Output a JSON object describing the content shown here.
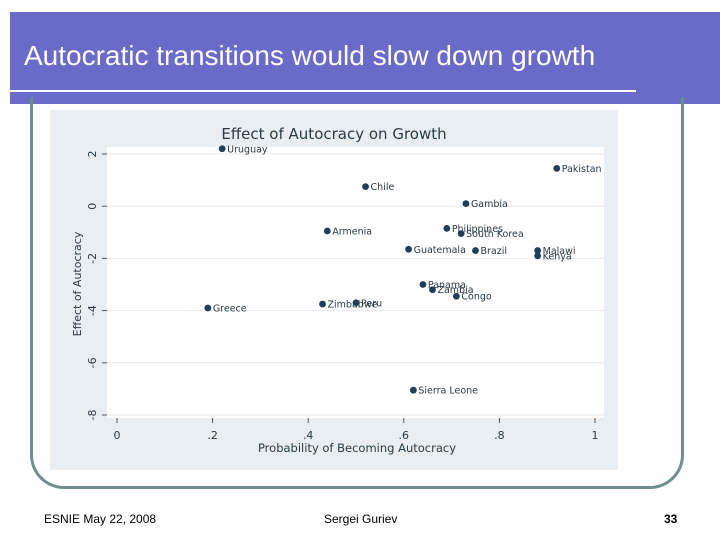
{
  "slide": {
    "title": "Autocratic transitions would slow down growth",
    "footer_left": "ESNIE May 22, 2008",
    "footer_center": "Sergei Guriev",
    "page_number": "33",
    "accent_color": "#6a6ac9"
  },
  "chart_data": {
    "type": "scatter",
    "title": "Effect of Autocracy on Growth",
    "xlabel": "Probability of Becoming Autocracy",
    "ylabel": "Effect of Autocracy",
    "xlim": [
      0,
      1
    ],
    "ylim": [
      -8,
      2
    ],
    "xticks": [
      0,
      0.2,
      0.4,
      0.6,
      0.8,
      1
    ],
    "xtick_labels": [
      "0",
      ".2",
      ".4",
      ".6",
      ".8",
      "1"
    ],
    "yticks": [
      -8,
      -6,
      -4,
      -2,
      0,
      2
    ],
    "ytick_labels": [
      "-8",
      "-6",
      "-4",
      "-2",
      "0",
      "2"
    ],
    "grid": true,
    "points": [
      {
        "label": "Uruguay",
        "x": 0.22,
        "y": 2.2
      },
      {
        "label": "Pakistan",
        "x": 0.92,
        "y": 1.45
      },
      {
        "label": "Chile",
        "x": 0.52,
        "y": 0.75
      },
      {
        "label": "Gambia",
        "x": 0.73,
        "y": 0.1
      },
      {
        "label": "Armenia",
        "x": 0.44,
        "y": -0.95
      },
      {
        "label": "Philippines",
        "x": 0.69,
        "y": -0.85
      },
      {
        "label": "South Korea",
        "x": 0.72,
        "y": -1.05
      },
      {
        "label": "Guatemala",
        "x": 0.61,
        "y": -1.65
      },
      {
        "label": "Brazil",
        "x": 0.75,
        "y": -1.7
      },
      {
        "label": "Malawi",
        "x": 0.88,
        "y": -1.7
      },
      {
        "label": "Kenya",
        "x": 0.88,
        "y": -1.9
      },
      {
        "label": "Panama",
        "x": 0.64,
        "y": -3.0
      },
      {
        "label": "Zambia",
        "x": 0.66,
        "y": -3.2
      },
      {
        "label": "Congo",
        "x": 0.71,
        "y": -3.45
      },
      {
        "label": "Zimbabwe",
        "x": 0.43,
        "y": -3.75
      },
      {
        "label": "Peru",
        "x": 0.5,
        "y": -3.7
      },
      {
        "label": "Greece",
        "x": 0.19,
        "y": -3.9
      },
      {
        "label": "Sierra Leone",
        "x": 0.62,
        "y": -7.05
      }
    ]
  }
}
